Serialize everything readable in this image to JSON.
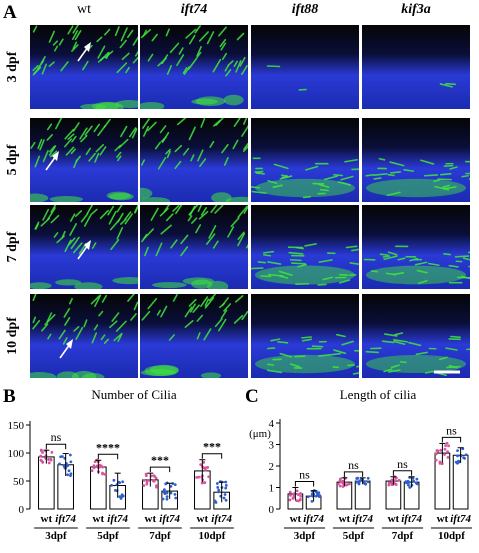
{
  "panels": {
    "a": "A",
    "b": "B",
    "c": "C"
  },
  "columns": [
    {
      "label": "wt",
      "italic": false
    },
    {
      "label": "ift74",
      "italic": true
    },
    {
      "label": "ift88",
      "italic": true
    },
    {
      "label": "kif3a",
      "italic": true
    }
  ],
  "rows": [
    {
      "label": "3 dpf"
    },
    {
      "label": "5 dpf"
    },
    {
      "label": "7 dpf"
    },
    {
      "label": "10 dpf"
    }
  ],
  "micrograph": {
    "cilia_density": [
      [
        0.85,
        0.75,
        0.04,
        0.04
      ],
      [
        0.85,
        0.7,
        0.55,
        0.55
      ],
      [
        0.8,
        0.75,
        0.65,
        0.6
      ],
      [
        0.7,
        0.6,
        0.55,
        0.5
      ]
    ],
    "arrows": [
      "wt-3dpf",
      "wt-5dpf",
      "wt-7dpf",
      "wt-10dpf"
    ],
    "colors": {
      "cilia": "#3fe63a",
      "nuclei": "#2a3ad6",
      "background": "#050505"
    }
  },
  "chart_data": [
    {
      "type": "bar",
      "title": "Number of Cilia",
      "ylabel": "",
      "ylim": [
        0,
        150
      ],
      "yticks": [
        0,
        50,
        100,
        150
      ],
      "groups": [
        "3dpf",
        "5dpf",
        "7dpf",
        "10dpf"
      ],
      "categories": [
        "wt",
        "ift74"
      ],
      "values": [
        [
          93,
          79
        ],
        [
          75,
          42
        ],
        [
          52,
          32
        ],
        [
          68,
          30
        ]
      ],
      "errors": [
        [
          12,
          20
        ],
        [
          12,
          22
        ],
        [
          12,
          14
        ],
        [
          20,
          18
        ]
      ],
      "significance": [
        "ns",
        "****",
        "***",
        "***"
      ],
      "colors": {
        "wt": "#d6559e",
        "ift74": "#2e5fcc"
      }
    },
    {
      "type": "bar",
      "title": "Length of cilia",
      "ylabel": "(μm)",
      "ylim": [
        0,
        4
      ],
      "yticks": [
        0,
        1,
        2,
        3,
        4
      ],
      "groups": [
        "3dpf",
        "5dpf",
        "7dpf",
        "10dpf"
      ],
      "categories": [
        "wt",
        "ift74"
      ],
      "values": [
        [
          0.7,
          0.6
        ],
        [
          1.25,
          1.3
        ],
        [
          1.3,
          1.25
        ],
        [
          2.6,
          2.5
        ]
      ],
      "errors": [
        [
          0.3,
          0.25
        ],
        [
          0.2,
          0.15
        ],
        [
          0.2,
          0.25
        ],
        [
          0.45,
          0.35
        ]
      ],
      "significance": [
        "ns",
        "ns",
        "ns",
        "ns"
      ],
      "colors": {
        "wt": "#d6559e",
        "ift74": "#2e5fcc"
      }
    }
  ]
}
